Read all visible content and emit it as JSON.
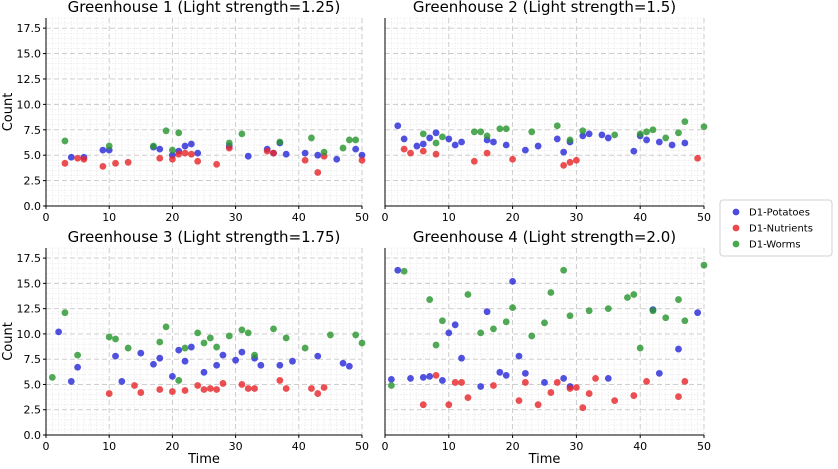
{
  "legend": [
    "D1-Potatoes",
    "D1-Nutrients",
    "D1-Worms"
  ],
  "colors": {
    "D1-Potatoes": "#2b2bd9",
    "D1-Nutrients": "#e8282c",
    "D1-Worms": "#2a9630"
  },
  "chart_data": [
    {
      "type": "scatter",
      "title": "Greenhouse 1 (Light strength=1.25)",
      "xlabel": "",
      "ylabel": "Count",
      "xlim": [
        0,
        50
      ],
      "ylim": [
        0,
        18.5
      ],
      "xticks": [
        "0",
        "10",
        "20",
        "30",
        "40",
        "50"
      ],
      "yticks": [
        "0.0",
        "2.5",
        "5.0",
        "7.5",
        "10.0",
        "12.5",
        "15.0",
        "17.5"
      ],
      "series": [
        {
          "name": "D1-Potatoes",
          "points": [
            [
              4,
              4.8
            ],
            [
              6,
              4.8
            ],
            [
              9,
              5.5
            ],
            [
              10,
              5.5
            ],
            [
              17,
              5.8
            ],
            [
              18,
              5.6
            ],
            [
              20,
              5.0
            ],
            [
              21,
              5.4
            ],
            [
              22,
              5.9
            ],
            [
              23,
              6.1
            ],
            [
              24,
              5.2
            ],
            [
              29,
              5.9
            ],
            [
              32,
              4.9
            ],
            [
              35,
              5.6
            ],
            [
              36,
              5.2
            ],
            [
              37,
              6.2
            ],
            [
              38,
              5.1
            ],
            [
              41,
              5.2
            ],
            [
              43,
              5.0
            ],
            [
              46,
              4.6
            ],
            [
              49,
              5.6
            ],
            [
              50,
              5.0
            ]
          ]
        },
        {
          "name": "D1-Nutrients",
          "points": [
            [
              3,
              4.2
            ],
            [
              5,
              4.7
            ],
            [
              6,
              4.6
            ],
            [
              9,
              3.9
            ],
            [
              11,
              4.2
            ],
            [
              13,
              4.3
            ],
            [
              18,
              4.7
            ],
            [
              20,
              4.6
            ],
            [
              21,
              5.1
            ],
            [
              22,
              5.2
            ],
            [
              23,
              5.1
            ],
            [
              24,
              4.4
            ],
            [
              27,
              4.1
            ],
            [
              29,
              5.7
            ],
            [
              35,
              5.4
            ],
            [
              36,
              5.2
            ],
            [
              41,
              4.5
            ],
            [
              43,
              3.3
            ],
            [
              44,
              4.9
            ],
            [
              50,
              4.5
            ]
          ]
        },
        {
          "name": "D1-Worms",
          "points": [
            [
              3,
              6.4
            ],
            [
              10,
              5.9
            ],
            [
              17,
              5.9
            ],
            [
              19,
              7.4
            ],
            [
              20,
              5.5
            ],
            [
              21,
              7.2
            ],
            [
              29,
              6.2
            ],
            [
              31,
              7.1
            ],
            [
              37,
              6.3
            ],
            [
              42,
              6.7
            ],
            [
              44,
              5.3
            ],
            [
              47,
              5.7
            ],
            [
              48,
              6.5
            ],
            [
              49,
              6.5
            ]
          ]
        }
      ]
    },
    {
      "type": "scatter",
      "title": "Greenhouse 2 (Light strength=1.5)",
      "xlabel": "",
      "ylabel": "",
      "xlim": [
        0,
        50
      ],
      "ylim": [
        0,
        18.5
      ],
      "xticks": [
        "0",
        "10",
        "20",
        "30",
        "40",
        "50"
      ],
      "yticks": [],
      "series": [
        {
          "name": "D1-Potatoes",
          "points": [
            [
              2,
              7.9
            ],
            [
              3,
              6.6
            ],
            [
              5,
              5.9
            ],
            [
              6,
              6.1
            ],
            [
              7,
              6.7
            ],
            [
              8,
              7.2
            ],
            [
              10,
              6.6
            ],
            [
              11,
              6.0
            ],
            [
              12,
              6.3
            ],
            [
              16,
              6.5
            ],
            [
              17,
              6.3
            ],
            [
              19,
              6.0
            ],
            [
              22,
              5.5
            ],
            [
              24,
              5.9
            ],
            [
              27,
              6.6
            ],
            [
              28,
              5.3
            ],
            [
              29,
              6.3
            ],
            [
              31,
              6.9
            ],
            [
              32,
              7.1
            ],
            [
              34,
              7.0
            ],
            [
              35,
              6.7
            ],
            [
              39,
              5.4
            ],
            [
              40,
              6.9
            ],
            [
              41,
              6.5
            ],
            [
              43,
              6.3
            ],
            [
              45,
              6.0
            ],
            [
              47,
              6.2
            ]
          ]
        },
        {
          "name": "D1-Nutrients",
          "points": [
            [
              3,
              5.6
            ],
            [
              4,
              5.2
            ],
            [
              6,
              5.4
            ],
            [
              8,
              5.1
            ],
            [
              14,
              4.4
            ],
            [
              16,
              5.2
            ],
            [
              20,
              4.6
            ],
            [
              28,
              4.0
            ],
            [
              29,
              4.3
            ],
            [
              30,
              4.5
            ],
            [
              49,
              4.7
            ]
          ]
        },
        {
          "name": "D1-Worms",
          "points": [
            [
              6,
              7.1
            ],
            [
              8,
              6.2
            ],
            [
              9,
              6.8
            ],
            [
              14,
              7.3
            ],
            [
              15,
              7.3
            ],
            [
              16,
              6.9
            ],
            [
              18,
              7.6
            ],
            [
              19,
              7.6
            ],
            [
              23,
              7.3
            ],
            [
              27,
              7.9
            ],
            [
              29,
              6.5
            ],
            [
              31,
              7.4
            ],
            [
              36,
              7.0
            ],
            [
              40,
              7.1
            ],
            [
              41,
              7.3
            ],
            [
              42,
              7.5
            ],
            [
              44,
              6.7
            ],
            [
              46,
              7.2
            ],
            [
              47,
              8.3
            ],
            [
              50,
              7.8
            ]
          ]
        }
      ]
    },
    {
      "type": "scatter",
      "title": "Greenhouse 3 (Light strength=1.75)",
      "xlabel": "Time",
      "ylabel": "Count",
      "xlim": [
        0,
        50
      ],
      "ylim": [
        0,
        18.5
      ],
      "xticks": [
        "0",
        "10",
        "20",
        "30",
        "40",
        "50"
      ],
      "yticks": [
        "0.0",
        "2.5",
        "5.0",
        "7.5",
        "10.0",
        "12.5",
        "15.0",
        "17.5"
      ],
      "series": [
        {
          "name": "D1-Potatoes",
          "points": [
            [
              2,
              10.2
            ],
            [
              4,
              5.3
            ],
            [
              5,
              6.7
            ],
            [
              11,
              7.8
            ],
            [
              12,
              5.3
            ],
            [
              15,
              8.1
            ],
            [
              17,
              7.0
            ],
            [
              18,
              7.6
            ],
            [
              20,
              5.8
            ],
            [
              21,
              8.4
            ],
            [
              22,
              7.3
            ],
            [
              23,
              8.7
            ],
            [
              25,
              6.2
            ],
            [
              27,
              6.9
            ],
            [
              28,
              7.9
            ],
            [
              30,
              7.4
            ],
            [
              31,
              8.2
            ],
            [
              33,
              7.6
            ],
            [
              34,
              6.9
            ],
            [
              37,
              6.9
            ],
            [
              39,
              7.3
            ],
            [
              43,
              7.8
            ],
            [
              47,
              7.1
            ],
            [
              48,
              6.8
            ]
          ]
        },
        {
          "name": "D1-Nutrients",
          "points": [
            [
              10,
              4.1
            ],
            [
              14,
              4.9
            ],
            [
              15,
              4.2
            ],
            [
              18,
              4.5
            ],
            [
              20,
              4.3
            ],
            [
              22,
              4.4
            ],
            [
              24,
              4.9
            ],
            [
              25,
              4.5
            ],
            [
              26,
              4.6
            ],
            [
              27,
              4.5
            ],
            [
              28,
              5.1
            ],
            [
              31,
              5.0
            ],
            [
              32,
              4.6
            ],
            [
              33,
              4.6
            ],
            [
              37,
              5.4
            ],
            [
              38,
              4.6
            ],
            [
              42,
              4.6
            ],
            [
              43,
              4.1
            ],
            [
              44,
              4.7
            ]
          ]
        },
        {
          "name": "D1-Worms",
          "points": [
            [
              1,
              5.7
            ],
            [
              3,
              12.1
            ],
            [
              5,
              7.9
            ],
            [
              10,
              9.7
            ],
            [
              11,
              9.5
            ],
            [
              13,
              8.6
            ],
            [
              18,
              9.2
            ],
            [
              19,
              10.7
            ],
            [
              21,
              5.4
            ],
            [
              22,
              8.6
            ],
            [
              24,
              10.1
            ],
            [
              25,
              9.1
            ],
            [
              26,
              9.6
            ],
            [
              27,
              8.7
            ],
            [
              29,
              9.8
            ],
            [
              31,
              10.4
            ],
            [
              32,
              10.1
            ],
            [
              33,
              7.9
            ],
            [
              36,
              10.5
            ],
            [
              38,
              9.6
            ],
            [
              41,
              8.6
            ],
            [
              45,
              9.9
            ],
            [
              49,
              9.9
            ],
            [
              50,
              9.1
            ]
          ]
        }
      ]
    },
    {
      "type": "scatter",
      "title": "Greenhouse 4 (Light strength=2.0)",
      "xlabel": "Time",
      "ylabel": "",
      "xlim": [
        0,
        50
      ],
      "ylim": [
        0,
        18.5
      ],
      "xticks": [
        "0",
        "10",
        "20",
        "30",
        "40",
        "50"
      ],
      "yticks": [],
      "series": [
        {
          "name": "D1-Potatoes",
          "points": [
            [
              1,
              5.5
            ],
            [
              2,
              16.3
            ],
            [
              4,
              5.6
            ],
            [
              6,
              5.7
            ],
            [
              7,
              5.8
            ],
            [
              9,
              5.4
            ],
            [
              10,
              10.1
            ],
            [
              11,
              10.9
            ],
            [
              12,
              7.6
            ],
            [
              15,
              4.8
            ],
            [
              16,
              12.2
            ],
            [
              18,
              6.2
            ],
            [
              19,
              5.9
            ],
            [
              20,
              15.2
            ],
            [
              21,
              7.8
            ],
            [
              22,
              6.1
            ],
            [
              25,
              5.2
            ],
            [
              28,
              5.6
            ],
            [
              29,
              4.8
            ],
            [
              35,
              5.6
            ],
            [
              42,
              12.4
            ],
            [
              43,
              6.1
            ],
            [
              46,
              8.5
            ],
            [
              49,
              12.1
            ]
          ]
        },
        {
          "name": "D1-Nutrients",
          "points": [
            [
              6,
              3.0
            ],
            [
              8,
              5.9
            ],
            [
              10,
              3.0
            ],
            [
              11,
              5.2
            ],
            [
              12,
              5.2
            ],
            [
              13,
              3.7
            ],
            [
              17,
              4.9
            ],
            [
              21,
              3.4
            ],
            [
              22,
              5.2
            ],
            [
              24,
              3.0
            ],
            [
              26,
              4.2
            ],
            [
              27,
              5.2
            ],
            [
              29,
              4.6
            ],
            [
              30,
              4.7
            ],
            [
              31,
              2.7
            ],
            [
              32,
              4.1
            ],
            [
              33,
              5.6
            ],
            [
              36,
              3.4
            ],
            [
              39,
              3.9
            ],
            [
              41,
              5.3
            ],
            [
              46,
              3.8
            ],
            [
              47,
              5.3
            ]
          ]
        },
        {
          "name": "D1-Worms",
          "points": [
            [
              1,
              4.9
            ],
            [
              3,
              16.2
            ],
            [
              7,
              13.4
            ],
            [
              8,
              8.9
            ],
            [
              9,
              11.3
            ],
            [
              13,
              13.9
            ],
            [
              15,
              10.1
            ],
            [
              17,
              10.5
            ],
            [
              19,
              11.2
            ],
            [
              20,
              12.6
            ],
            [
              23,
              9.8
            ],
            [
              25,
              11.1
            ],
            [
              26,
              14.1
            ],
            [
              28,
              16.3
            ],
            [
              29,
              11.8
            ],
            [
              32,
              12.3
            ],
            [
              35,
              12.5
            ],
            [
              38,
              13.6
            ],
            [
              39,
              13.9
            ],
            [
              40,
              8.6
            ],
            [
              42,
              12.3
            ],
            [
              44,
              11.6
            ],
            [
              46,
              13.4
            ],
            [
              47,
              11.3
            ],
            [
              50,
              16.8
            ]
          ]
        }
      ]
    }
  ]
}
